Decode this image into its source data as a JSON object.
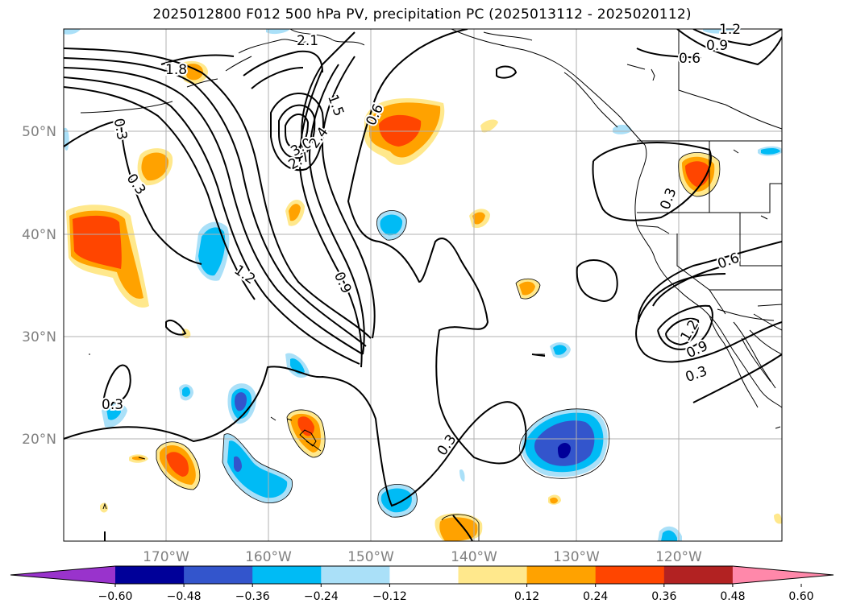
{
  "title": "2025012800 F012 500 hPa PV, precipitation PC (2025013112 - 2025020112)",
  "axes": {
    "lat_labels": [
      "50°N",
      "40°N",
      "30°N",
      "20°N"
    ],
    "lon_labels": [
      "170°W",
      "160°W",
      "150°W",
      "140°W",
      "130°W",
      "120°W"
    ]
  },
  "contour_labels": [
    "1.2",
    "0.9",
    "0.6",
    "2.1",
    "1.8",
    "0.3",
    "1.5",
    "0.6",
    "2.7",
    "3.0",
    "2.4",
    "1.2",
    "0.9",
    "0.3",
    "0.3",
    "0.3",
    "0.6",
    "0.9",
    "1.2",
    "0.3",
    "0.3"
  ],
  "colorbar": {
    "ticks": [
      "−0.60",
      "−0.48",
      "−0.36",
      "−0.24",
      "−0.12",
      "0.12",
      "0.24",
      "0.36",
      "0.48",
      "0.60"
    ],
    "colors": [
      "#9933cc",
      "#000099",
      "#3355cc",
      "#00bbf5",
      "#aae0f8",
      "#ffffff",
      "#ffe88c",
      "#ffa200",
      "#ff4500",
      "#b22222",
      "#ff88aa"
    ]
  }
}
